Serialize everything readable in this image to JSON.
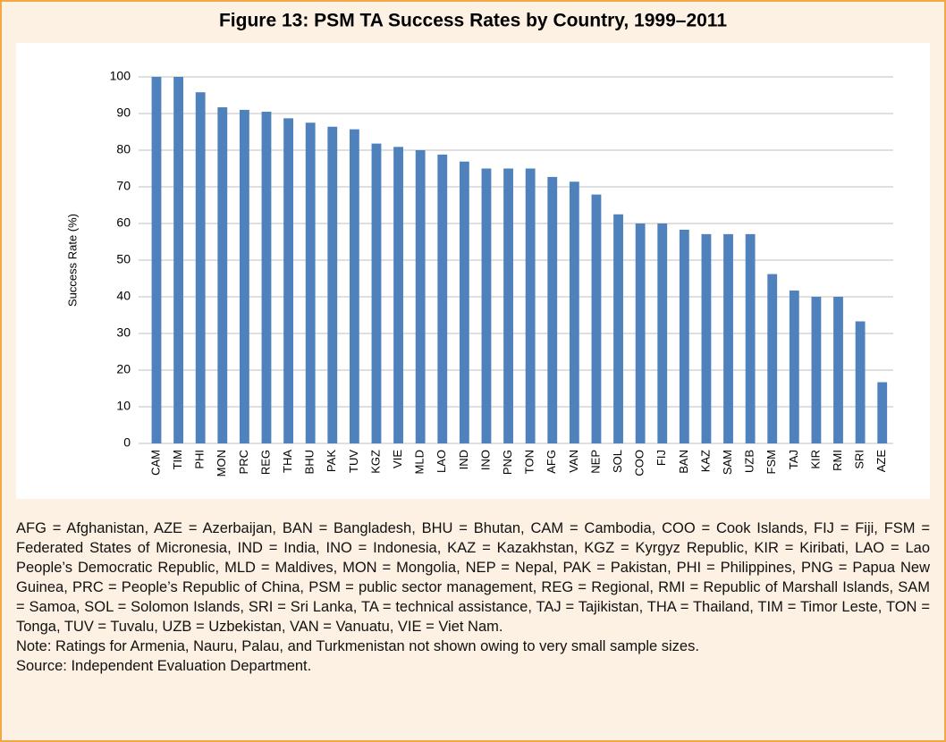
{
  "chart_data": {
    "type": "bar",
    "title": "Figure 13: PSM TA Success Rates by Country, 1999–2011",
    "y_label": "Success Rate (%)",
    "categories": [
      "CAM",
      "TIM",
      "PHI",
      "MON",
      "PRC",
      "REG",
      "THA",
      "BHU",
      "PAK",
      "TUV",
      "KGZ",
      "VIE",
      "MLD",
      "LAO",
      "IND",
      "INO",
      "PNG",
      "TON",
      "AFG",
      "VAN",
      "NEP",
      "SOL",
      "COO",
      "FIJ",
      "BAN",
      "KAZ",
      "SAM",
      "UZB",
      "FSM",
      "TAJ",
      "KIR",
      "RMI",
      "SRI",
      "AZE"
    ],
    "values": [
      100,
      100,
      95.8,
      91.7,
      91,
      90.5,
      88.7,
      87.5,
      86.4,
      85.7,
      81.8,
      80.9,
      80,
      78.8,
      76.9,
      75,
      75,
      75,
      72.7,
      71.4,
      67.9,
      62.5,
      60,
      60,
      58.3,
      57.1,
      57.1,
      57.1,
      46.2,
      41.7,
      40,
      40,
      33.3,
      16.7
    ],
    "color": "#4f81bd",
    "ylim": [
      0,
      100
    ],
    "yticks": [
      0,
      10,
      20,
      30,
      40,
      50,
      60,
      70,
      80,
      90,
      100
    ],
    "grid": true
  },
  "notes": {
    "abbreviations": "AFG = Afghanistan, AZE = Azerbaijan, BAN = Bangladesh, BHU = Bhutan, CAM = Cambodia, COO = Cook Islands, FIJ = Fiji, FSM = Federated States of Micronesia, IND = India, INO = Indonesia, KAZ = Kazakhstan, KGZ = Kyrgyz Republic, KIR = Kiribati, LAO = Lao People’s Democratic Republic, MLD = Maldives, MON = Mongolia, NEP = Nepal, PAK = Pakistan, PHI = Philippines, PNG = Papua New Guinea, PRC = People’s Republic of China, PSM = public sector management, REG = Regional, RMI = Republic of Marshall Islands, SAM = Samoa, SOL = Solomon Islands, SRI = Sri Lanka, TA = technical assistance, TAJ = Tajikistan, THA = Thailand, TIM = Timor Leste, TON = Tonga, TUV = Tuvalu, UZB = Uzbekistan, VAN = Vanuatu, VIE = Viet Nam.",
    "note": "Note: Ratings for Armenia, Nauru, Palau, and Turkmenistan not shown owing to very small sample sizes.",
    "source": "Source: Independent Evaluation Department."
  }
}
